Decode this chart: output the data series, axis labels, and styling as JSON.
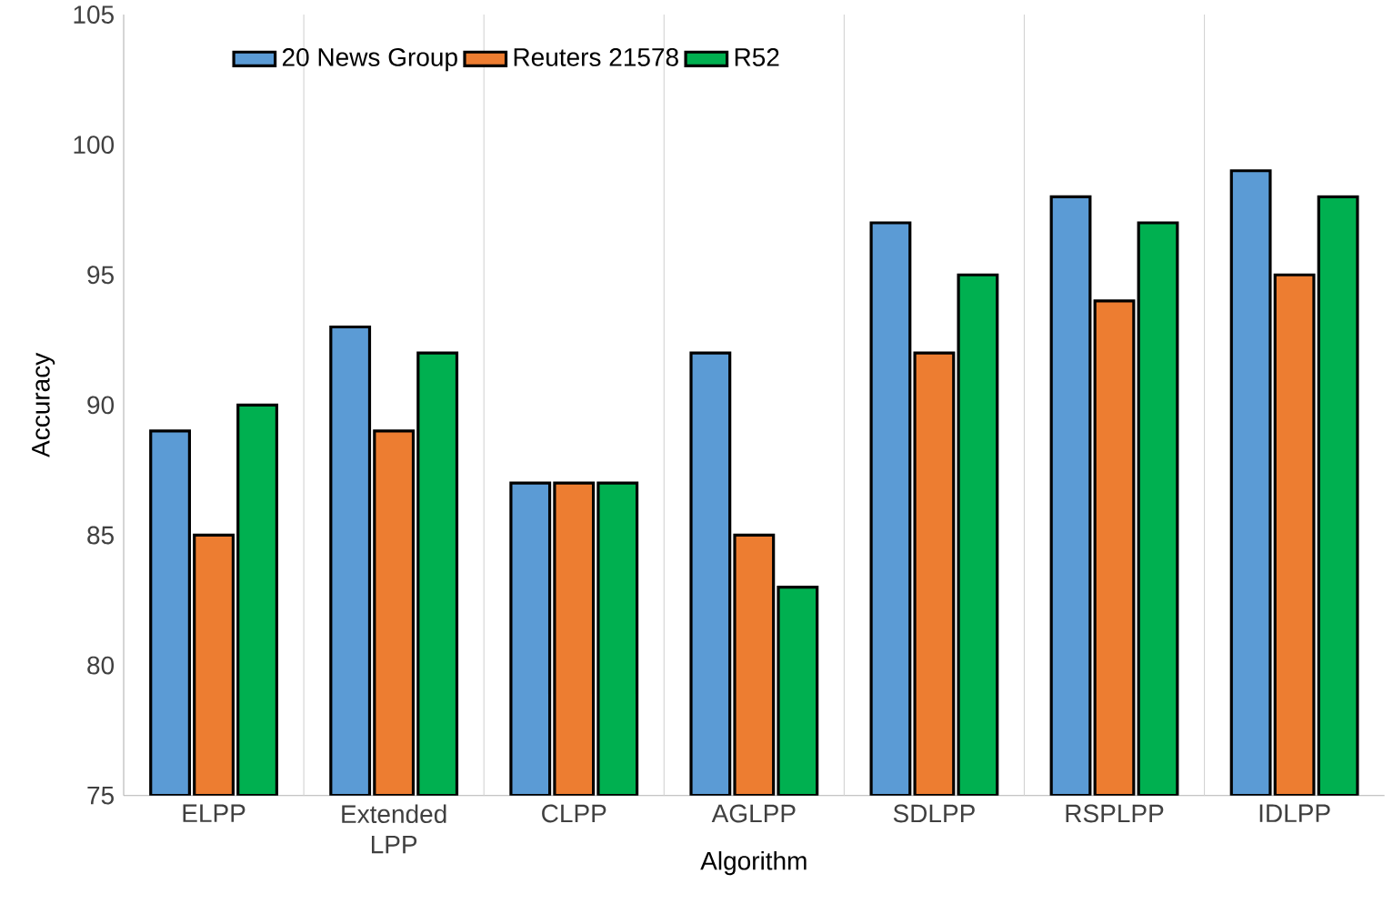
{
  "chart_data": {
    "type": "bar",
    "xlabel": "Algorithm",
    "ylabel": "Accuracy",
    "categories": [
      "ELPP",
      "Extended LPP",
      "CLPP",
      "AGLPP",
      "SDLPP",
      "RSPLPP",
      "IDLPP"
    ],
    "series": [
      {
        "name": "20 News Group",
        "color": "#5b9bd5",
        "values": [
          89,
          93,
          87,
          92,
          97,
          98,
          99
        ]
      },
      {
        "name": "Reuters 21578",
        "color": "#ed7d31",
        "values": [
          85,
          89,
          87,
          85,
          92,
          94,
          95
        ]
      },
      {
        "name": "R52",
        "color": "#00b050",
        "values": [
          90,
          92,
          87,
          83,
          95,
          97,
          98
        ]
      }
    ],
    "ylim": [
      75,
      105
    ],
    "yticks": [
      75,
      80,
      85,
      90,
      95,
      100,
      105
    ],
    "grid": "x",
    "legend": "top left"
  }
}
